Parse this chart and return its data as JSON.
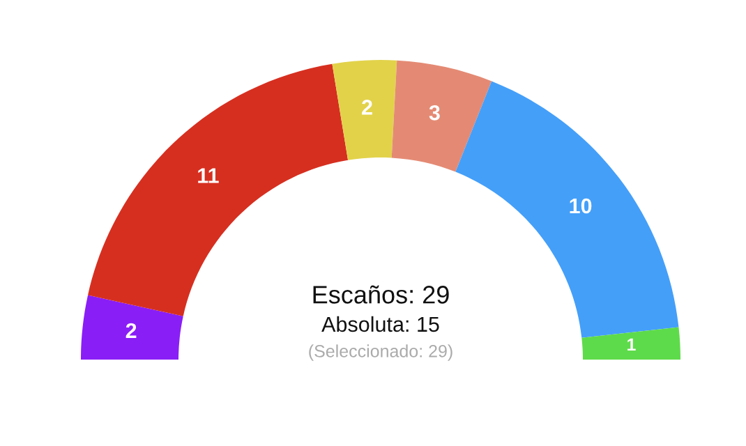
{
  "chart_data": {
    "type": "donut",
    "categories": [
      null,
      null,
      null,
      null,
      null,
      null
    ],
    "values": [
      2,
      11,
      2,
      3,
      10,
      1
    ],
    "colors": [
      "#8a1ef6",
      "#d62f20",
      "#e2d24a",
      "#e48a74",
      "#449ff9",
      "#5edb4a"
    ],
    "data_labels": true,
    "annotations": [
      "Escaños: 29",
      "Absoluta: 15",
      "(Seleccionado: 29)"
    ]
  }
}
